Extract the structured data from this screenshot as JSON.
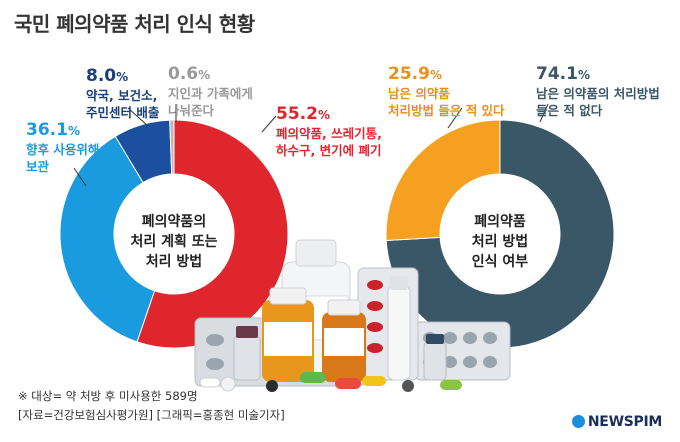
{
  "title": "국민 폐의약품 처리 인식 현황",
  "chart_data": [
    {
      "type": "pie",
      "title": "폐의약품의 처리 계획 또는 처리 방법",
      "center_lines": [
        "폐의약품의",
        "처리 계획 또는",
        "처리 방법"
      ],
      "slices": [
        {
          "label_lines": [
            "폐의약품, 쓰레기통,",
            "하수구, 변기에 폐기"
          ],
          "value": 55.2,
          "color": "#e0262d",
          "label_color": "#e0262d"
        },
        {
          "label_lines": [
            "향후 사용위해",
            "보관"
          ],
          "value": 36.1,
          "color": "#1a9be0",
          "label_color": "#1a9be0"
        },
        {
          "label_lines": [
            "약국, 보건소,",
            "주민센터 배출"
          ],
          "value": 8.0,
          "color": "#1c4fa0",
          "label_color": "#1a3f7a"
        },
        {
          "label_lines": [
            "지인과 가족에게",
            "나눠준다"
          ],
          "value": 0.6,
          "color": "#b8b8b8",
          "label_color": "#999999"
        }
      ]
    },
    {
      "type": "pie",
      "title": "폐의약품 처리 방법 인식 여부",
      "center_lines": [
        "폐의약품",
        "처리 방법",
        "인식 여부"
      ],
      "slices": [
        {
          "label_lines": [
            "남은 의약품의 처리방법",
            "들은 적 없다"
          ],
          "value": 74.1,
          "color": "#3a5767",
          "label_color": "#3a5767"
        },
        {
          "label_lines": [
            "남은 의약품",
            "처리방법 들은 적 있다"
          ],
          "value": 25.9,
          "color": "#f5a020",
          "label_color": "#e8901a"
        }
      ]
    }
  ],
  "footnotes": {
    "note1": "※ 대상= 약 처방 후 미사용한 589명",
    "note2": "[자료=건강보험심사평가원] [그래픽=홍종현 미술기자]"
  },
  "brand": "NEWSPIM"
}
